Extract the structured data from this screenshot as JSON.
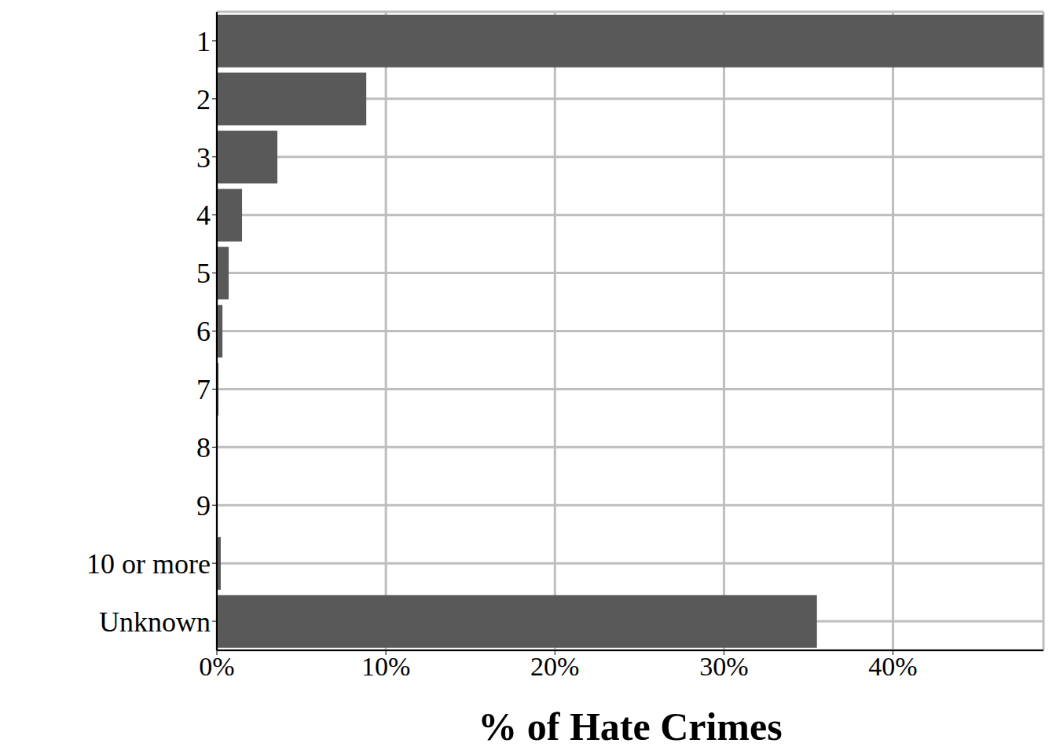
{
  "chart_data": {
    "type": "bar",
    "orientation": "horizontal",
    "xlabel": "% of Hate Crimes",
    "categories": [
      "1",
      "2",
      "3",
      "4",
      "5",
      "6",
      "7",
      "8",
      "9",
      "10 or more",
      "Unknown"
    ],
    "values": [
      48.9,
      8.84,
      3.58,
      1.49,
      0.7,
      0.33,
      0.1,
      0.05,
      0.02,
      0.23,
      35.5
    ],
    "color": "#595959",
    "xlim": [
      0,
      48.9
    ],
    "xticks": [
      {
        "value": 0,
        "label": "0%"
      },
      {
        "value": 10,
        "label": "10%"
      },
      {
        "value": 20,
        "label": "20%"
      },
      {
        "value": 30,
        "label": "30%"
      },
      {
        "value": 40,
        "label": "40%"
      }
    ],
    "grid": true
  }
}
